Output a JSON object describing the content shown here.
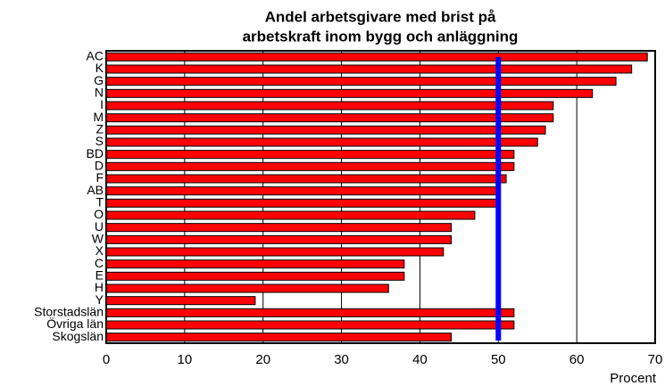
{
  "chart_data": {
    "type": "barh",
    "title": [
      "Andel arbetsgivare med brist på",
      "arbetskraft inom bygg och anläggning"
    ],
    "x_label": "Procent",
    "categories": [
      "AC",
      "K",
      "G",
      "N",
      "I",
      "M",
      "Z",
      "S",
      "BD",
      "D",
      "F",
      "AB",
      "T",
      "O",
      "U",
      "W",
      "X",
      "C",
      "E",
      "H",
      "Y",
      "Storstadslän",
      "Övriga län",
      "Skogslän"
    ],
    "values": [
      69,
      67,
      65,
      62,
      57,
      57,
      56,
      55,
      52,
      52,
      51,
      50,
      50,
      47,
      44,
      44,
      43,
      38,
      38,
      36,
      19,
      52,
      52,
      44
    ],
    "color": "#ff0000",
    "reference_line": {
      "value": 50,
      "color": "#0000ff"
    },
    "xlim": [
      0,
      70
    ],
    "xticks": [
      0,
      10,
      20,
      30,
      40,
      50,
      60,
      70
    ],
    "grid": true
  }
}
